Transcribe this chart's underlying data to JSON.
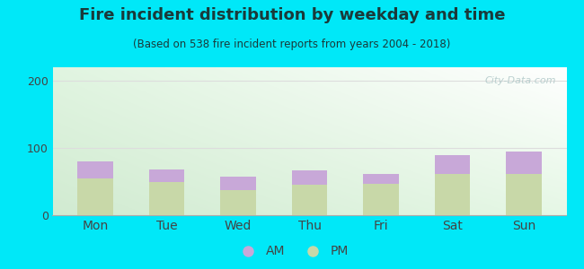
{
  "title": "Fire incident distribution by weekday and time",
  "subtitle": "(Based on 538 fire incident reports from years 2004 - 2018)",
  "categories": [
    "Mon",
    "Tue",
    "Wed",
    "Thu",
    "Fri",
    "Sat",
    "Sun"
  ],
  "pm_values": [
    55,
    50,
    38,
    45,
    47,
    62,
    62
  ],
  "am_values": [
    25,
    18,
    20,
    22,
    15,
    27,
    33
  ],
  "am_color": "#c8a8d8",
  "pm_color": "#c8d8a8",
  "background_outer": "#00e8f8",
  "ylim": [
    0,
    220
  ],
  "yticks": [
    0,
    100,
    200
  ],
  "bar_width": 0.5,
  "watermark": "City-Data.com",
  "title_fontsize": 13,
  "subtitle_fontsize": 8.5,
  "title_color": "#1a3a3a",
  "tick_color": "#444444",
  "grid_color": "#dddddd"
}
